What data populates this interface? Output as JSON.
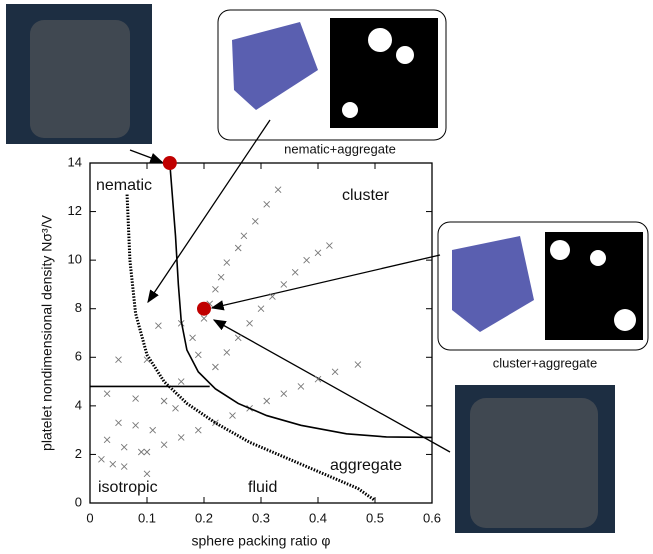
{
  "chart_data": {
    "type": "scatter",
    "xlabel": "sphere packing ratio φ",
    "ylabel": "platelet nondimensional density Nσ³/V",
    "xlim": [
      0,
      0.6
    ],
    "ylim": [
      0,
      14
    ],
    "xticks": [
      0,
      0.1,
      0.2,
      0.3,
      0.4,
      0.5,
      0.6
    ],
    "yticks": [
      0,
      2,
      4,
      6,
      8,
      10,
      12,
      14
    ],
    "annotations": [
      "nematic",
      "cluster",
      "isotropic",
      "fluid",
      "aggregate"
    ],
    "insets": [
      "nematic+aggregate",
      "cluster+aggregate"
    ],
    "series": [
      {
        "style": "cross",
        "color": "#777777",
        "x": [
          0.2,
          0.21,
          0.22,
          0.23,
          0.24,
          0.26,
          0.27,
          0.29,
          0.31,
          0.33,
          0.12,
          0.16,
          0.18,
          0.19,
          0.22,
          0.24,
          0.26,
          0.28,
          0.3,
          0.32,
          0.34,
          0.36,
          0.38,
          0.4,
          0.42,
          0.1,
          0.13,
          0.16,
          0.19,
          0.22,
          0.25,
          0.28,
          0.31,
          0.34,
          0.37,
          0.4,
          0.43,
          0.47,
          0.02,
          0.04,
          0.06,
          0.1,
          0.03,
          0.06,
          0.09,
          0.05,
          0.08,
          0.11,
          0.03,
          0.08,
          0.13,
          0.15,
          0.05,
          0.1,
          0.16
        ],
        "values": [
          7.6,
          8.2,
          8.8,
          9.3,
          9.9,
          10.5,
          11.0,
          11.6,
          12.3,
          12.9,
          7.3,
          7.4,
          6.8,
          6.1,
          5.6,
          6.2,
          6.8,
          7.4,
          8.0,
          8.5,
          9.0,
          9.5,
          10.0,
          10.3,
          10.6,
          2.1,
          2.4,
          2.7,
          3.0,
          3.3,
          3.6,
          3.9,
          4.2,
          4.5,
          4.8,
          5.1,
          5.4,
          5.7,
          1.8,
          1.6,
          1.5,
          1.2,
          2.6,
          2.3,
          2.1,
          3.3,
          3.2,
          3.0,
          4.5,
          4.3,
          4.2,
          3.9,
          5.9,
          5.9,
          5.0
        ]
      },
      {
        "style": "line",
        "color": "#000000",
        "x": [
          0.14,
          0.15,
          0.155,
          0.16,
          0.17,
          0.19,
          0.22,
          0.26,
          0.31,
          0.37,
          0.45,
          0.52,
          0.6
        ],
        "values": [
          14,
          11,
          9,
          7.5,
          6.3,
          5.4,
          4.7,
          4.1,
          3.6,
          3.2,
          2.85,
          2.72,
          2.7
        ]
      },
      {
        "style": "line",
        "color": "#000000",
        "x": [
          0,
          0.21
        ],
        "values": [
          4.8,
          4.8
        ]
      },
      {
        "style": "dotted",
        "color": "#000000",
        "x": [
          0.065,
          0.07,
          0.08,
          0.1,
          0.13,
          0.17,
          0.22,
          0.28,
          0.35,
          0.42,
          0.47,
          0.5
        ],
        "values": [
          12.7,
          10,
          7.8,
          6.1,
          5.0,
          4.1,
          3.3,
          2.5,
          1.8,
          1.1,
          0.6,
          0.1
        ]
      },
      {
        "style": "dot",
        "color": "#c00000",
        "x": [
          0.14,
          0.2
        ],
        "values": [
          14,
          8
        ]
      }
    ]
  }
}
